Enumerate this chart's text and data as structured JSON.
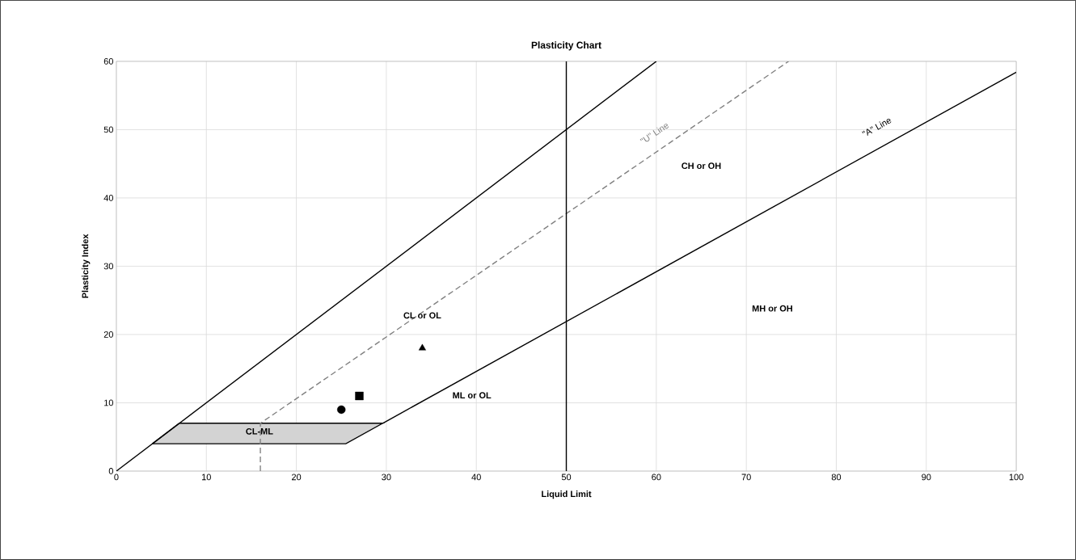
{
  "chart_data": {
    "type": "line",
    "title": "Plasticity Chart",
    "xlabel": "Liquid Limit",
    "ylabel": "Plasticity Index",
    "xlim": [
      0,
      100
    ],
    "ylim": [
      0,
      60
    ],
    "xticks": [
      0,
      10,
      20,
      30,
      40,
      50,
      60,
      70,
      80,
      90,
      100
    ],
    "yticks": [
      0,
      10,
      20,
      30,
      40,
      50,
      60
    ],
    "grid": true,
    "series": [
      {
        "type": "area",
        "color": "#d3d3d3",
        "x": [
          4,
          25.5,
          29.6,
          7,
          4
        ],
        "values": [
          4,
          4,
          7,
          7,
          4
        ]
      },
      {
        "color": "#000000",
        "x": [
          0,
          60
        ],
        "values": [
          0,
          60
        ]
      },
      {
        "color": "#000000",
        "x": [
          29.6,
          100
        ],
        "values": [
          7,
          58.4
        ]
      },
      {
        "color": "#808080",
        "line_style": "dashed",
        "x": [
          16,
          16,
          74.7
        ],
        "values": [
          0,
          7,
          60
        ]
      },
      {
        "type": "scatter",
        "color": "#000000",
        "marker": "circle",
        "x": [
          25
        ],
        "values": [
          9
        ]
      },
      {
        "type": "scatter",
        "color": "#000000",
        "marker": "square",
        "x": [
          27
        ],
        "values": [
          11
        ]
      },
      {
        "type": "scatter",
        "color": "#000000",
        "marker": "triangle",
        "x": [
          34
        ],
        "values": [
          18
        ]
      }
    ],
    "ref_lines": [
      {
        "axis": "x",
        "value": 50,
        "color": "#000000"
      }
    ],
    "annotations": [
      "CL or OL",
      "CH or OH",
      "MH or OH",
      "ML or OL",
      "CL-ML",
      "\"U\" Line",
      "\"A\" Line"
    ]
  }
}
